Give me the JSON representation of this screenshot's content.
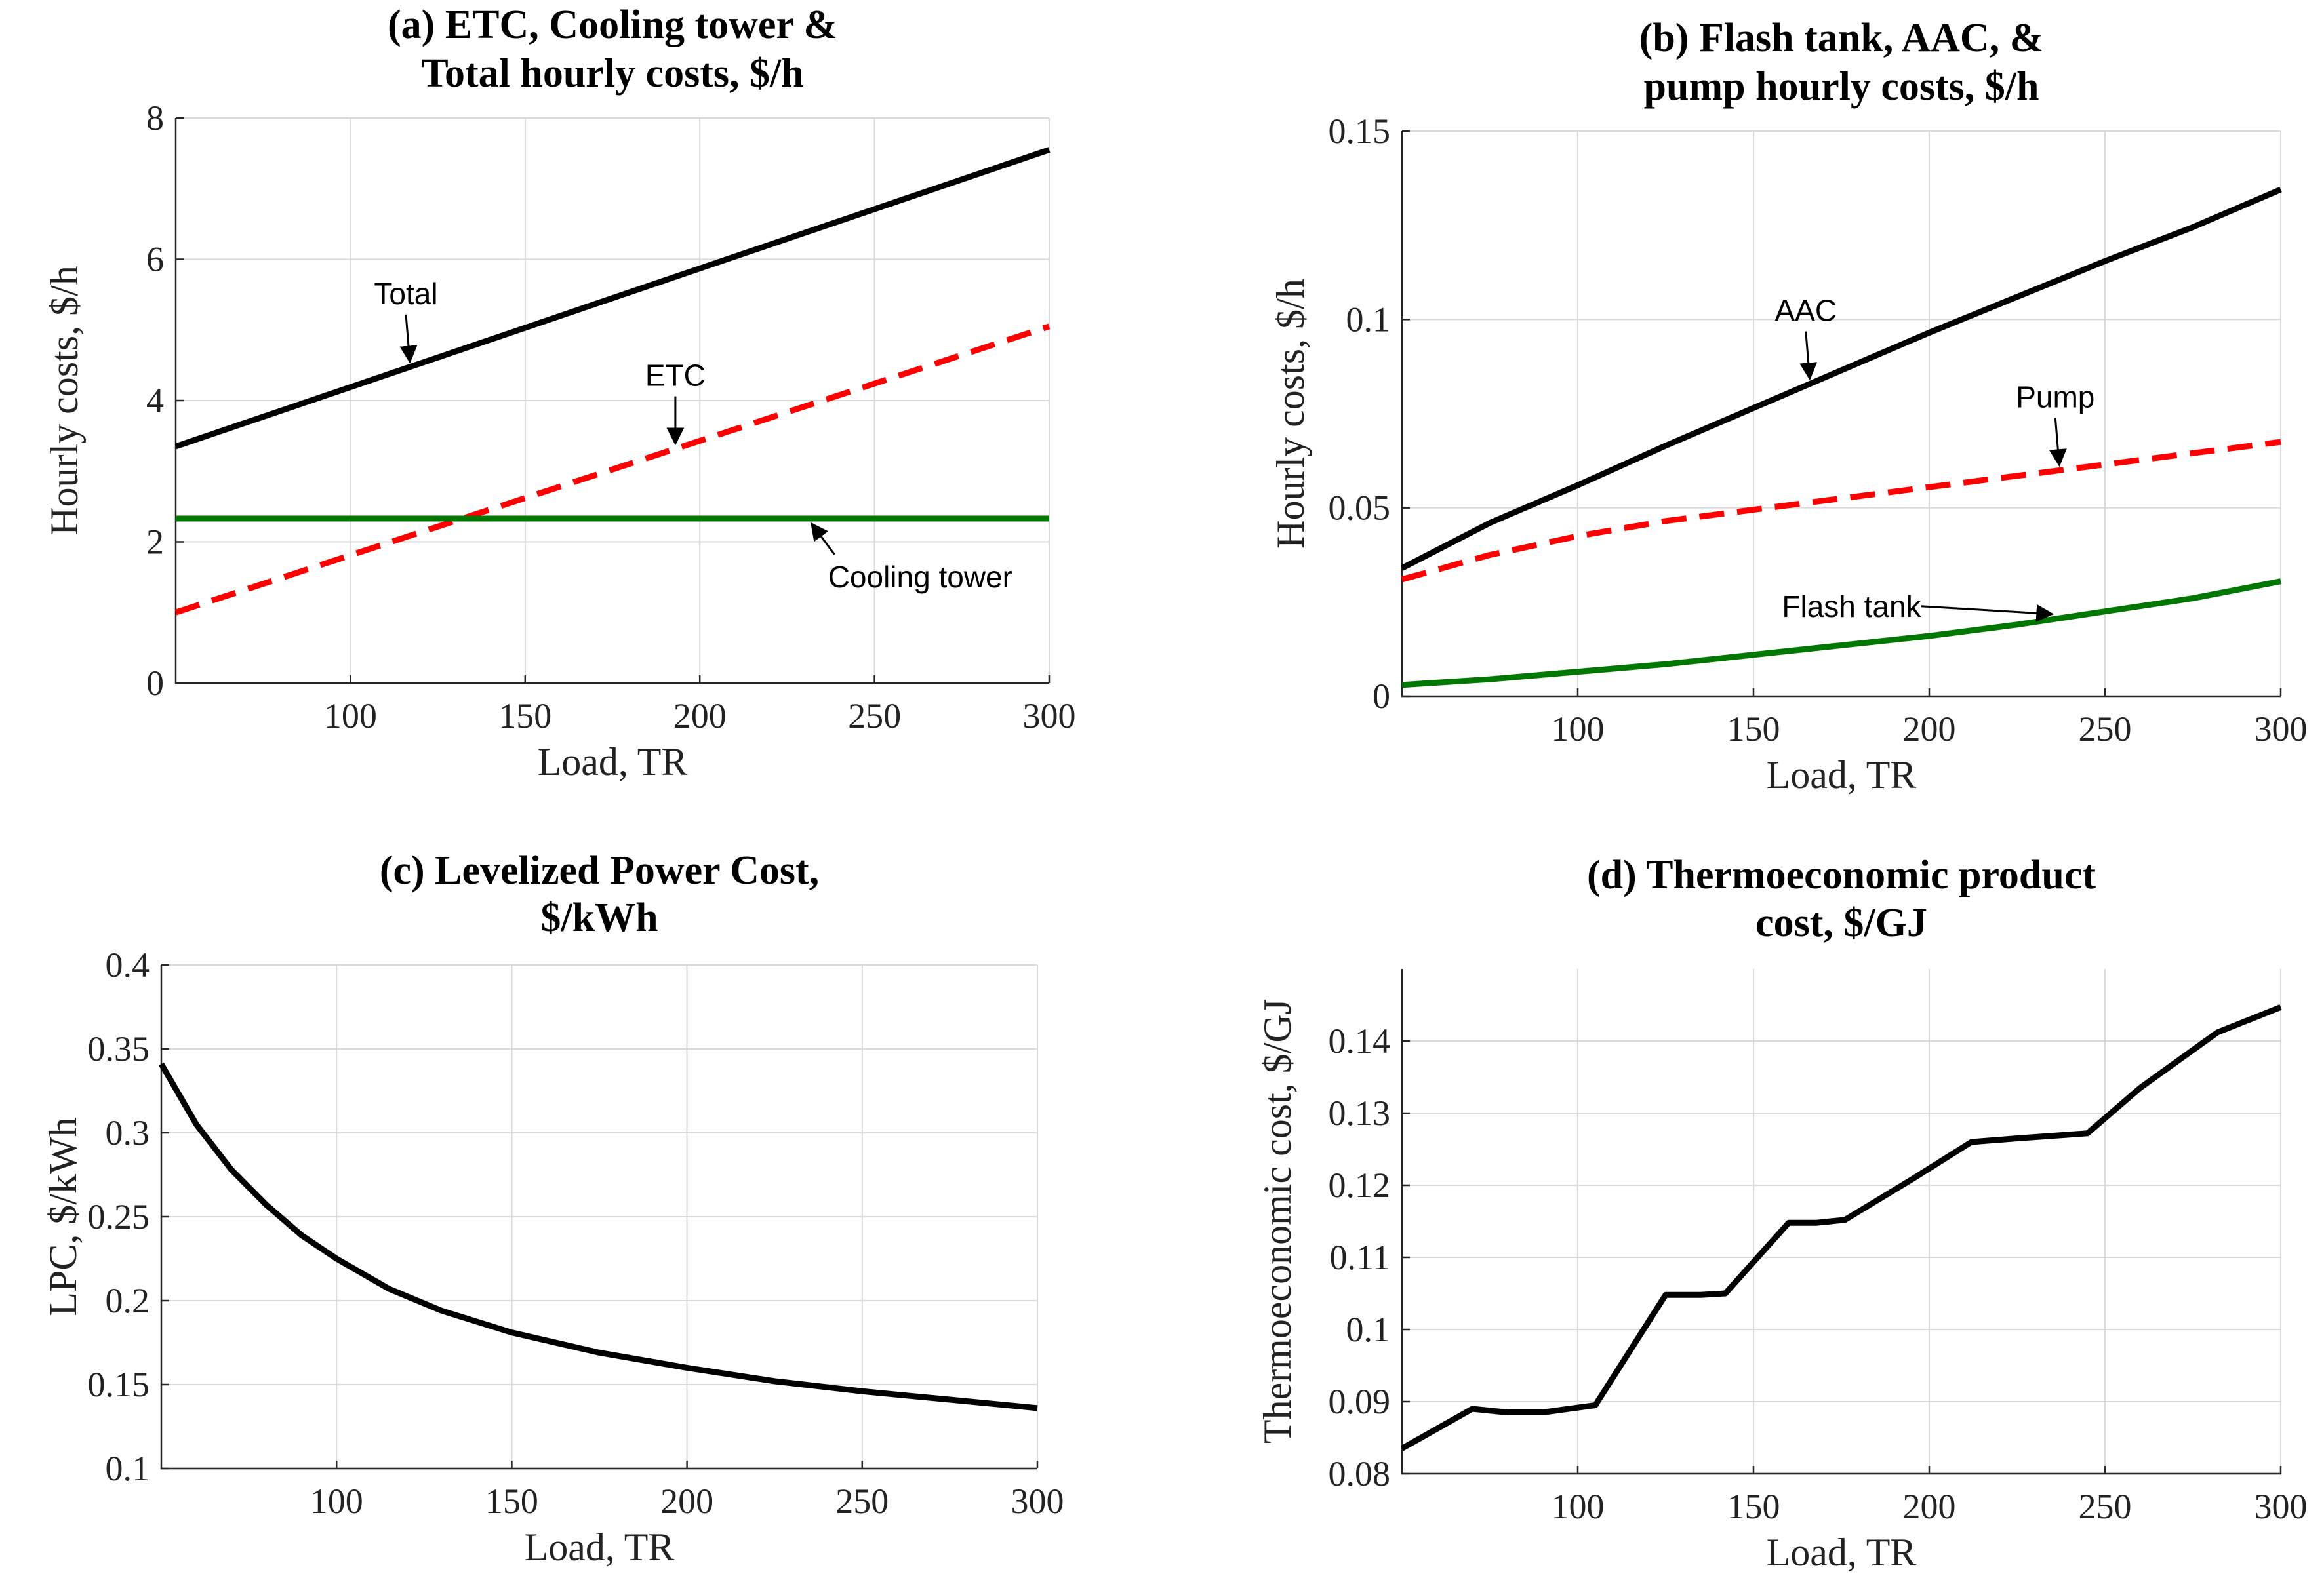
{
  "chart_data": [
    {
      "id": "a",
      "type": "line",
      "title": [
        "(a) ETC, Cooling tower &",
        "Total hourly costs, $/h"
      ],
      "xlabel": "Load, TR",
      "ylabel": "Hourly costs, $/h",
      "xlim": [
        50,
        300
      ],
      "ylim": [
        0,
        8
      ],
      "xticks": [
        100,
        150,
        200,
        250,
        300
      ],
      "xtick_labels": [
        "100",
        "150",
        "200",
        "250",
        "300"
      ],
      "yticks": [
        0,
        2,
        4,
        6,
        8
      ],
      "ytick_labels": [
        "0",
        "2",
        "4",
        "6",
        "8"
      ],
      "grid": true,
      "series": [
        {
          "name": "Total",
          "color": "#000000",
          "dash": "solid",
          "x": [
            50,
            300
          ],
          "y": [
            3.35,
            7.55
          ]
        },
        {
          "name": "ETC",
          "color": "#ff0000",
          "dash": "dashed",
          "x": [
            50,
            300
          ],
          "y": [
            1.0,
            5.05
          ]
        },
        {
          "name": "Cooling tower",
          "color": "#007700",
          "dash": "solid",
          "x": [
            50,
            300
          ],
          "y": [
            2.33,
            2.33
          ]
        }
      ],
      "annotations": [
        {
          "text": "Total",
          "series": "Total",
          "at_x": 117
        },
        {
          "text": "ETC",
          "series": "ETC",
          "at_x": 193
        },
        {
          "text": "Cooling tower",
          "series": "Cooling tower",
          "at_x": 232
        }
      ]
    },
    {
      "id": "b",
      "type": "line",
      "title": [
        "(b) Flash tank, AAC, &",
        "pump hourly costs, $/h"
      ],
      "xlabel": "Load, TR",
      "ylabel": "Hourly costs, $/h",
      "xlim": [
        50,
        300
      ],
      "ylim": [
        0,
        0.15
      ],
      "xticks": [
        100,
        150,
        200,
        250,
        300
      ],
      "xtick_labels": [
        "100",
        "150",
        "200",
        "250",
        "300"
      ],
      "yticks": [
        0,
        0.05,
        0.1,
        0.15
      ],
      "ytick_labels": [
        "0",
        "0.05",
        "0.1",
        "0.15"
      ],
      "grid": true,
      "series": [
        {
          "name": "AAC",
          "color": "#000000",
          "dash": "solid",
          "x": [
            50,
            75,
            100,
            125,
            150,
            175,
            200,
            225,
            250,
            275,
            300
          ],
          "y": [
            0.034,
            0.046,
            0.056,
            0.0665,
            0.0765,
            0.0865,
            0.0965,
            0.106,
            0.1155,
            0.1245,
            0.1345
          ]
        },
        {
          "name": "Pump",
          "color": "#ff0000",
          "dash": "dashed",
          "x": [
            50,
            75,
            100,
            125,
            150,
            175,
            200,
            225,
            250,
            275,
            300
          ],
          "y": [
            0.031,
            0.0375,
            0.0425,
            0.0465,
            0.0495,
            0.0525,
            0.0555,
            0.0585,
            0.0615,
            0.0645,
            0.0675
          ]
        },
        {
          "name": "Flash tank",
          "color": "#007700",
          "dash": "solid",
          "x": [
            50,
            75,
            100,
            125,
            150,
            175,
            200,
            225,
            250,
            275,
            300
          ],
          "y": [
            0.003,
            0.0045,
            0.0065,
            0.0085,
            0.011,
            0.0135,
            0.016,
            0.019,
            0.0225,
            0.026,
            0.0305
          ]
        }
      ],
      "annotations": [
        {
          "text": "AAC",
          "series": "AAC",
          "at_x": 166
        },
        {
          "text": "Pump",
          "series": "Pump",
          "at_x": 237
        },
        {
          "text": "Flash tank",
          "series": "Flash tank",
          "at_x": 235
        }
      ]
    },
    {
      "id": "c",
      "type": "line",
      "title": [
        "(c) Levelized Power Cost,",
        "$/kWh"
      ],
      "xlabel": "Load, TR",
      "ylabel": "LPC, $/kWh",
      "xlim": [
        50,
        300
      ],
      "ylim": [
        0.1,
        0.4
      ],
      "xticks": [
        100,
        150,
        200,
        250,
        300
      ],
      "xtick_labels": [
        "100",
        "150",
        "200",
        "250",
        "300"
      ],
      "yticks": [
        0.1,
        0.15,
        0.2,
        0.25,
        0.3,
        0.35,
        0.4
      ],
      "ytick_labels": [
        "0.1",
        "0.15",
        "0.2",
        "0.25",
        "0.3",
        "0.35",
        "0.4"
      ],
      "grid": true,
      "series": [
        {
          "name": "LPC",
          "color": "#000000",
          "dash": "solid",
          "x": [
            50,
            60,
            70,
            80,
            90,
            100,
            115,
            130,
            150,
            175,
            200,
            225,
            250,
            275,
            300
          ],
          "y": [
            0.341,
            0.305,
            0.278,
            0.257,
            0.239,
            0.225,
            0.207,
            0.194,
            0.181,
            0.169,
            0.16,
            0.152,
            0.146,
            0.141,
            0.136
          ]
        }
      ],
      "annotations": []
    },
    {
      "id": "d",
      "type": "line",
      "title": [
        "(d) Thermoeconomic product",
        "cost, $/GJ"
      ],
      "xlabel": "Load, TR",
      "ylabel": "Thermoeconomic cost, $/GJ",
      "xlim": [
        50,
        300
      ],
      "ylim": [
        0.08,
        0.15
      ],
      "xticks": [
        100,
        150,
        200,
        250,
        300
      ],
      "xtick_labels": [
        "100",
        "150",
        "200",
        "250",
        "300"
      ],
      "yticks": [
        0.08,
        0.09,
        0.1,
        0.11,
        0.12,
        0.13,
        0.14
      ],
      "ytick_labels": [
        "0.08",
        "0.09",
        "0.1",
        "0.11",
        "0.12",
        "0.13",
        "0.14"
      ],
      "grid": true,
      "series": [
        {
          "name": "Thermoeconomic cost",
          "color": "#000000",
          "dash": "solid",
          "x": [
            50,
            70,
            80,
            90,
            105,
            125,
            135,
            142,
            160,
            168,
            176,
            195,
            212,
            225,
            245,
            260,
            282,
            300
          ],
          "y": [
            0.0835,
            0.089,
            0.0885,
            0.0885,
            0.0895,
            0.1048,
            0.1048,
            0.105,
            0.1148,
            0.1148,
            0.1152,
            0.1208,
            0.126,
            0.1265,
            0.1272,
            0.1335,
            0.1412,
            0.1447
          ]
        }
      ],
      "annotations": []
    }
  ]
}
